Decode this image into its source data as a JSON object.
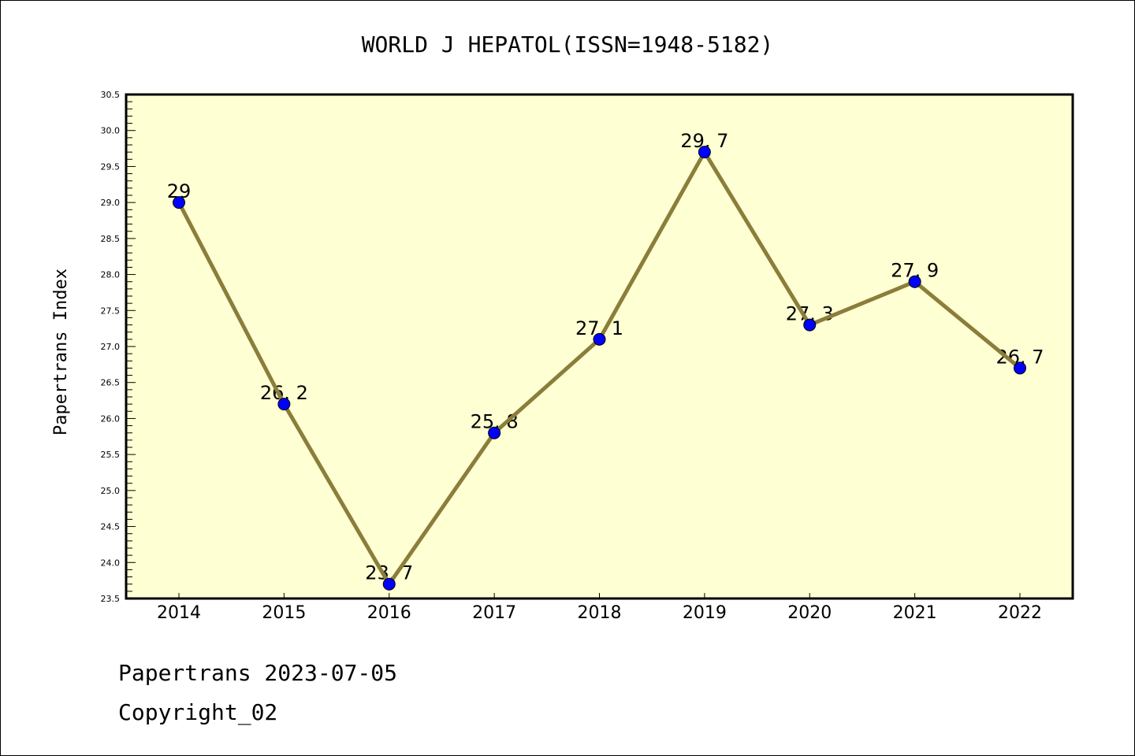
{
  "chart_data": {
    "type": "line",
    "title": "WORLD J HEPATOL(ISSN=1948-5182)",
    "xlabel": "",
    "ylabel": "Papertrans Index",
    "categories": [
      "2014",
      "2015",
      "2016",
      "2017",
      "2018",
      "2019",
      "2020",
      "2021",
      "2022"
    ],
    "series": [
      {
        "name": "Papertrans Index",
        "values": [
          29.0,
          26.2,
          23.7,
          25.8,
          27.1,
          29.7,
          27.3,
          27.9,
          26.7
        ],
        "labels": [
          "29",
          "26.2",
          "23.7",
          "25.8",
          "27.1",
          "29.7",
          "27.3",
          "27.9",
          "26.7"
        ],
        "line_color": "#8b7d3a",
        "marker_color": "#0000ff"
      }
    ],
    "ylim": [
      23.5,
      30.5
    ],
    "yticks": [
      "23.5",
      "24.0",
      "24.5",
      "25.0",
      "25.5",
      "26.0",
      "26.5",
      "27.0",
      "27.5",
      "28.0",
      "28.5",
      "29.0",
      "29.5",
      "30.0",
      "30.5"
    ],
    "grid": false,
    "legend": "none",
    "plot_background": "#ffffd4"
  },
  "footer": {
    "line1": "Papertrans 2023-07-05",
    "line2": "Copyright_02"
  }
}
